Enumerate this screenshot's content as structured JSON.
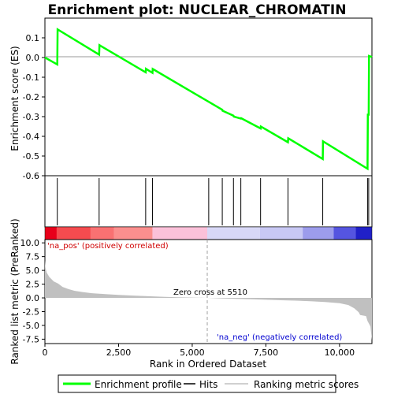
{
  "chart_data": {
    "type": "line",
    "title": "Enrichment plot: NUCLEAR_CHROMATIN",
    "top_panel": {
      "ylabel": "Enrichment score (ES)",
      "ylim": [
        -0.6,
        0.2
      ],
      "yticks": [
        0.1,
        0.0,
        -0.1,
        -0.2,
        -0.3,
        -0.4,
        -0.5,
        -0.6
      ],
      "ytick_labels": [
        "0.1",
        "0.0",
        "-0.1",
        "-0.2",
        "-0.3",
        "-0.4",
        "-0.5",
        "-0.6"
      ],
      "series": [
        {
          "name": "Enrichment profile",
          "color": "#00ff00",
          "x": [
            0,
            420,
            430,
            1840,
            1850,
            3420,
            3430,
            3650,
            3660,
            6020,
            6030,
            6400,
            6410,
            6650,
            6660,
            7320,
            7330,
            8250,
            8260,
            9430,
            9440,
            10950,
            10960,
            10990,
            11000,
            11100
          ],
          "y": [
            0.0,
            -0.035,
            0.143,
            0.015,
            0.063,
            -0.075,
            -0.057,
            -0.078,
            -0.058,
            -0.265,
            -0.27,
            -0.295,
            -0.3,
            -0.31,
            -0.308,
            -0.36,
            -0.35,
            -0.43,
            -0.41,
            -0.515,
            -0.425,
            -0.565,
            -0.29,
            -0.29,
            0.008,
            0.003
          ]
        }
      ]
    },
    "hits": {
      "name": "Hits",
      "positions": [
        420,
        1840,
        3420,
        3650,
        5560,
        6020,
        6400,
        6650,
        7320,
        8250,
        9430,
        10950,
        10990
      ]
    },
    "colorbar": {
      "segments": [
        {
          "from": 0,
          "to": 400,
          "color": "#e8001a"
        },
        {
          "from": 400,
          "to": 1550,
          "color": "#f54b4f"
        },
        {
          "from": 1550,
          "to": 2350,
          "color": "#f97172"
        },
        {
          "from": 2350,
          "to": 3650,
          "color": "#fb8f8e"
        },
        {
          "from": 3650,
          "to": 5510,
          "color": "#fbc1d9"
        },
        {
          "from": 5510,
          "to": 7300,
          "color": "#d8d8f7"
        },
        {
          "from": 7300,
          "to": 8750,
          "color": "#c8c8f4"
        },
        {
          "from": 8750,
          "to": 9800,
          "color": "#9c9cec"
        },
        {
          "from": 9800,
          "to": 10550,
          "color": "#5555e0"
        },
        {
          "from": 10550,
          "to": 11100,
          "color": "#2020c8"
        }
      ]
    },
    "bottom_panel": {
      "ylabel": "Ranked list metric (PreRanked)",
      "xlabel": "Rank in Ordered Dataset",
      "xlim": [
        0,
        11100
      ],
      "ylim": [
        -8.3,
        10.6
      ],
      "xticks": [
        0,
        2500,
        5000,
        7500,
        10000
      ],
      "xtick_labels": [
        "0",
        "2,500",
        "5,000",
        "7,500",
        "10,000"
      ],
      "yticks": [
        10.0,
        7.5,
        5.0,
        2.5,
        0.0,
        -2.5,
        -5.0,
        -7.5
      ],
      "ytick_labels": [
        "10.0",
        "7.5",
        "5.0",
        "2.5",
        "0.0",
        "-2.5",
        "-5.0",
        "-7.5"
      ],
      "series": [
        {
          "name": "Ranking metric scores",
          "color": "#c0c0c0",
          "x": [
            0,
            20,
            60,
            150,
            300,
            450,
            600,
            800,
            1000,
            1300,
            1600,
            2000,
            2500,
            3000,
            3500,
            4000,
            4500,
            5000,
            5510,
            6000,
            6500,
            7000,
            7500,
            8000,
            8500,
            9000,
            9500,
            10000,
            10300,
            10500,
            10650,
            10700,
            10900,
            10950,
            11050,
            11100
          ],
          "y": [
            6.8,
            5.5,
            4.6,
            3.8,
            3.0,
            2.6,
            2.0,
            1.6,
            1.3,
            1.05,
            0.85,
            0.7,
            0.55,
            0.42,
            0.3,
            0.2,
            0.12,
            0.06,
            0.0,
            -0.1,
            -0.18,
            -0.26,
            -0.34,
            -0.42,
            -0.5,
            -0.6,
            -0.75,
            -0.95,
            -1.3,
            -1.9,
            -2.6,
            -3.1,
            -3.3,
            -4.2,
            -5.2,
            -7.7
          ]
        }
      ],
      "zero_cross_label": "Zero cross at 5510",
      "zero_cross_rank": 5510,
      "pos_label": "'na_pos' (positively correlated)",
      "neg_label": "'na_neg' (negatively correlated)",
      "pos_label_color": "#d00000",
      "neg_label_color": "#0000d0"
    },
    "legend": {
      "placement": "bottom",
      "items": [
        {
          "label": "Enrichment profile",
          "color": "#00ff00"
        },
        {
          "label": "Hits",
          "color": "#000000"
        },
        {
          "label": "Ranking metric scores",
          "color": "#c0c0c0"
        }
      ]
    }
  }
}
